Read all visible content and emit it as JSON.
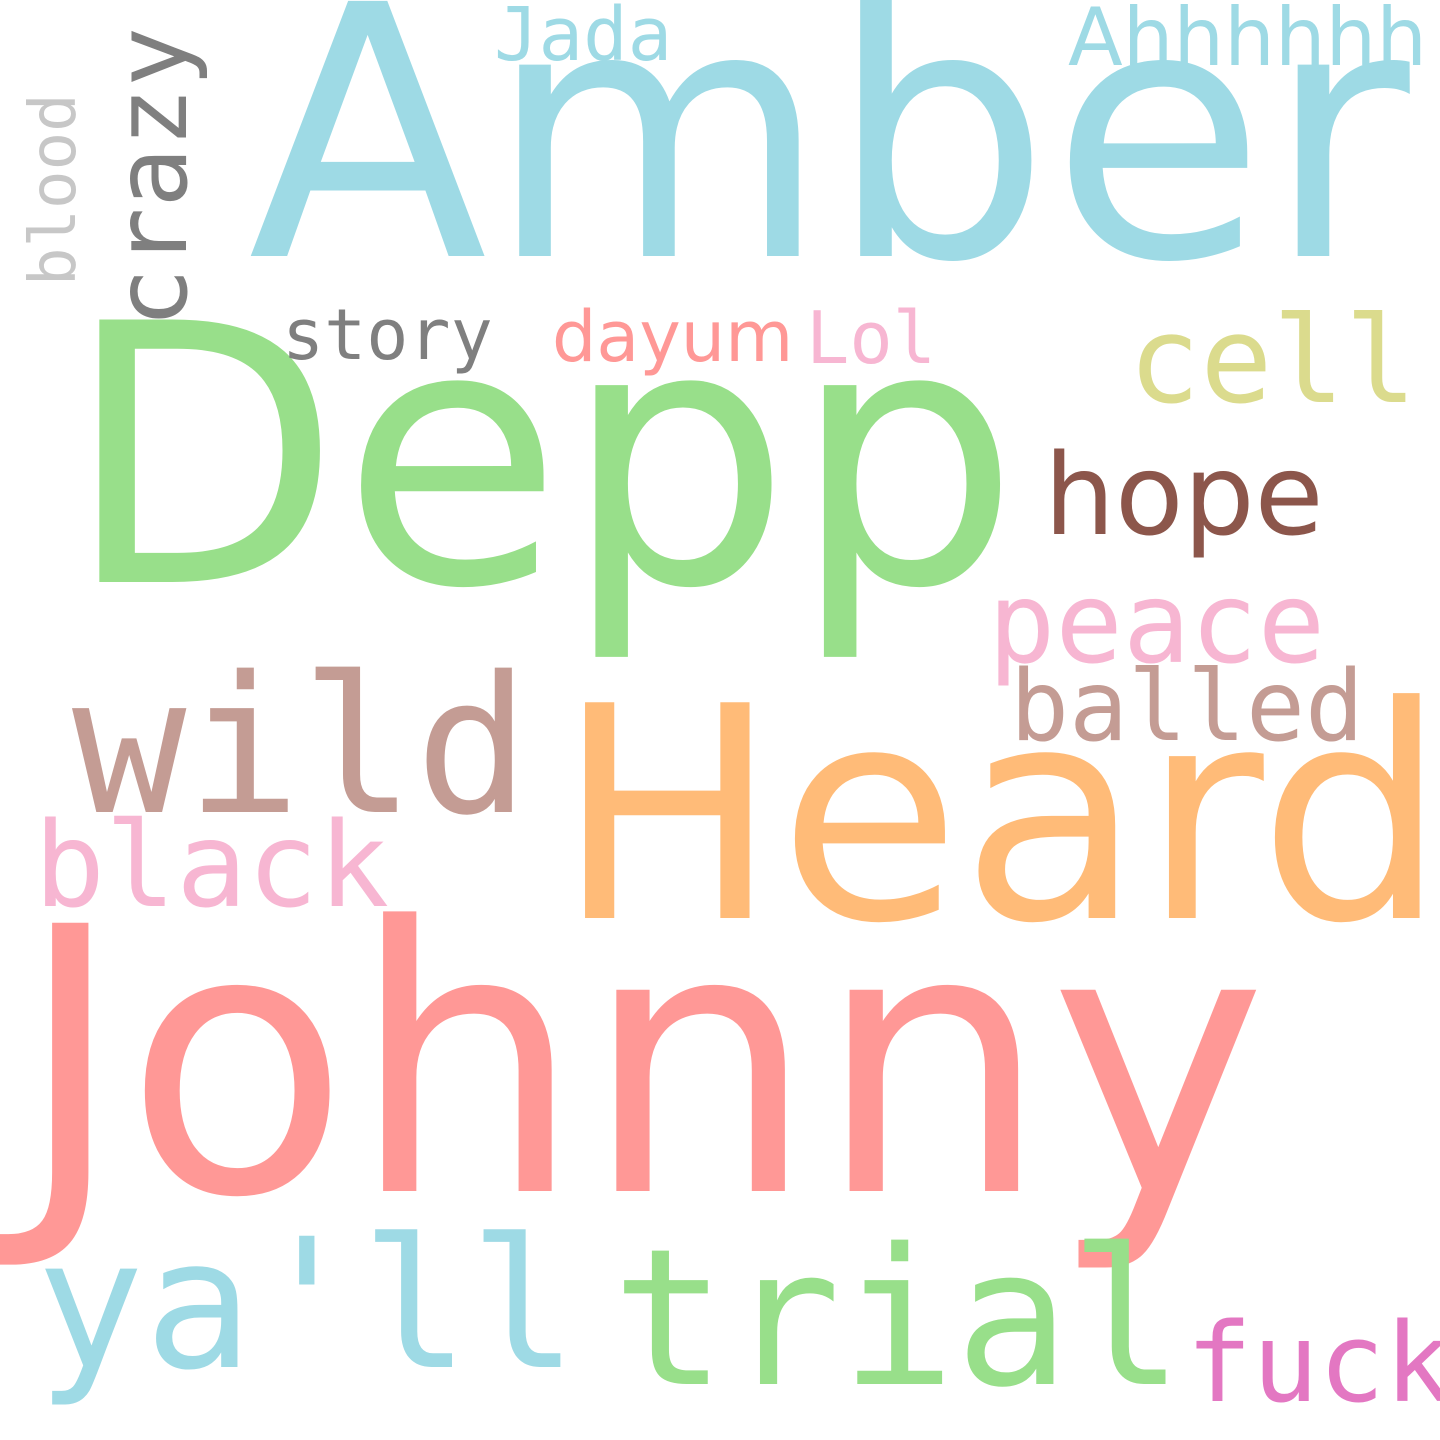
{
  "words": [
    {
      "id": "amber",
      "text": "Amber",
      "color": "#9edae5",
      "orientation": "horizontal"
    },
    {
      "id": "depp",
      "text": "Depp",
      "color": "#98df8a",
      "orientation": "horizontal"
    },
    {
      "id": "heard",
      "text": "Heard",
      "color": "#ffbb78",
      "orientation": "horizontal"
    },
    {
      "id": "johnny",
      "text": "Johnny",
      "color": "#ff9896",
      "orientation": "horizontal"
    },
    {
      "id": "wild",
      "text": "wild",
      "color": "#c49c94",
      "orientation": "horizontal"
    },
    {
      "id": "trial",
      "text": "trial",
      "color": "#98df8a",
      "orientation": "horizontal"
    },
    {
      "id": "yall",
      "text": "ya'll",
      "color": "#9edae5",
      "orientation": "horizontal"
    },
    {
      "id": "black",
      "text": "black",
      "color": "#f7b6d2",
      "orientation": "horizontal"
    },
    {
      "id": "hope",
      "text": "hope",
      "color": "#8c564b",
      "orientation": "horizontal"
    },
    {
      "id": "peace",
      "text": "peace",
      "color": "#f7b6d2",
      "orientation": "horizontal"
    },
    {
      "id": "balled",
      "text": "balled",
      "color": "#c49c94",
      "orientation": "horizontal"
    },
    {
      "id": "cell",
      "text": "cell",
      "color": "#dbdb8d",
      "orientation": "horizontal"
    },
    {
      "id": "fuck",
      "text": "fuck",
      "color": "#e377c2",
      "orientation": "horizontal"
    },
    {
      "id": "story",
      "text": "story",
      "color": "#7f7f7f",
      "orientation": "horizontal"
    },
    {
      "id": "dayum",
      "text": "dayum",
      "color": "#ff9896",
      "orientation": "horizontal"
    },
    {
      "id": "lol",
      "text": "Lol",
      "color": "#f7b6d2",
      "orientation": "horizontal"
    },
    {
      "id": "jada",
      "text": "Jada",
      "color": "#9edae5",
      "orientation": "horizontal"
    },
    {
      "id": "ahh",
      "text": "Ahhhhhh",
      "color": "#9edae5",
      "orientation": "horizontal"
    },
    {
      "id": "crazy",
      "text": "crazy",
      "color": "#7f7f7f",
      "orientation": "vertical"
    },
    {
      "id": "blood",
      "text": "blood",
      "color": "#c7c7c7",
      "orientation": "vertical"
    }
  ]
}
